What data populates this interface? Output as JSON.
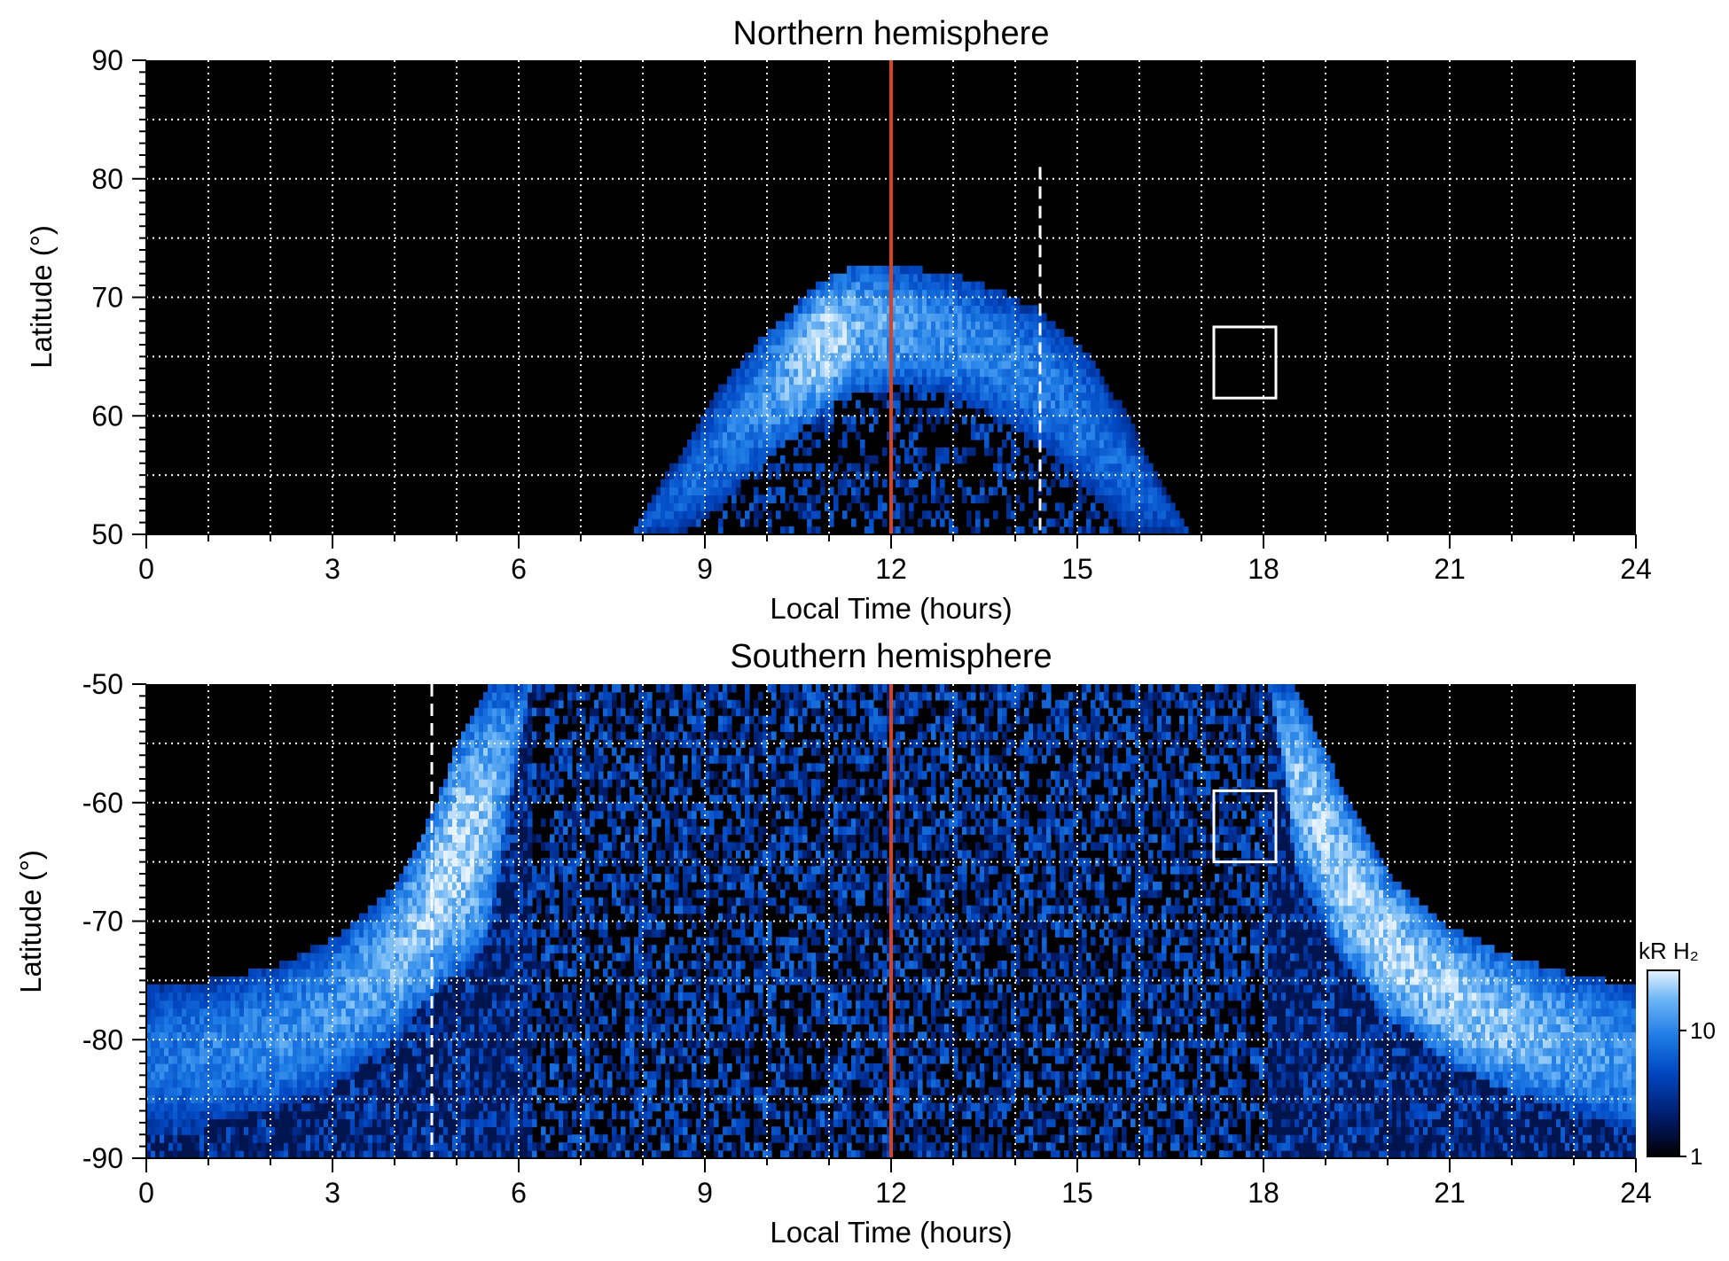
{
  "chart_data": [
    {
      "type": "heatmap",
      "title": "Northern hemisphere",
      "xlabel": "Local Time (hours)",
      "ylabel": "Latitude (°)",
      "xlim": [
        0,
        24
      ],
      "ylim": [
        50,
        90
      ],
      "x_ticks": [
        "0",
        "3",
        "6",
        "9",
        "12",
        "15",
        "18",
        "21",
        "24"
      ],
      "y_ticks": [
        "50",
        "60",
        "70",
        "80",
        "90"
      ],
      "grid": true,
      "noon_line_lt": 12,
      "dashed_line": {
        "lt": 14.4,
        "lat_range": [
          50,
          81
        ]
      },
      "box": {
        "lt": [
          17.2,
          18.2
        ],
        "lat": [
          61.5,
          67.5
        ]
      },
      "auroral_oval": [
        {
          "lt": 7.8,
          "equator": 50.0,
          "pole": 50.0,
          "peak": 0.45
        },
        {
          "lt": 8.5,
          "equator": 50.0,
          "pole": 56.0,
          "peak": 0.55
        },
        {
          "lt": 9.2,
          "equator": 52.0,
          "pole": 62.0,
          "peak": 0.6
        },
        {
          "lt": 9.8,
          "equator": 55.5,
          "pole": 66.0,
          "peak": 0.7
        },
        {
          "lt": 10.4,
          "equator": 58.0,
          "pole": 69.0,
          "peak": 0.85
        },
        {
          "lt": 10.9,
          "equator": 60.5,
          "pole": 71.5,
          "peak": 1.0
        },
        {
          "lt": 11.5,
          "equator": 62.0,
          "pole": 72.8,
          "peak": 0.85
        },
        {
          "lt": 12.3,
          "equator": 62.5,
          "pole": 72.5,
          "peak": 0.75
        },
        {
          "lt": 13.0,
          "equator": 61.5,
          "pole": 72.0,
          "peak": 0.7
        },
        {
          "lt": 13.8,
          "equator": 59.5,
          "pole": 70.5,
          "peak": 0.65
        },
        {
          "lt": 14.5,
          "equator": 57.0,
          "pole": 68.5,
          "peak": 0.65
        },
        {
          "lt": 15.2,
          "equator": 53.5,
          "pole": 65.0,
          "peak": 0.6
        },
        {
          "lt": 15.8,
          "equator": 50.0,
          "pole": 60.0,
          "peak": 0.55
        },
        {
          "lt": 16.3,
          "equator": 50.0,
          "pole": 55.0,
          "peak": 0.5
        },
        {
          "lt": 16.8,
          "equator": 50.0,
          "pole": 50.0,
          "peak": 0.4
        }
      ]
    },
    {
      "type": "heatmap",
      "title": "Southern hemisphere",
      "xlabel": "Local Time (hours)",
      "ylabel": "Latitude (°)",
      "xlim": [
        0,
        24
      ],
      "ylim": [
        -90,
        -50
      ],
      "x_ticks": [
        "0",
        "3",
        "6",
        "9",
        "12",
        "15",
        "18",
        "21",
        "24"
      ],
      "y_ticks": [
        "-90",
        "-80",
        "-70",
        "-60",
        "-50"
      ],
      "grid": true,
      "noon_line_lt": 12,
      "dashed_line": {
        "lt": 4.6,
        "lat_range": [
          -90,
          -50
        ]
      },
      "box": {
        "lt": [
          17.2,
          18.2
        ],
        "lat": [
          -65,
          -59
        ]
      },
      "auroral_oval": [
        {
          "lt": 0.0,
          "equator": -75.5,
          "pole": -88.0,
          "peak": 0.6
        },
        {
          "lt": 1.0,
          "equator": -75.0,
          "pole": -87.0,
          "peak": 0.65
        },
        {
          "lt": 2.0,
          "equator": -74.0,
          "pole": -86.0,
          "peak": 0.7
        },
        {
          "lt": 3.0,
          "equator": -71.5,
          "pole": -84.0,
          "peak": 0.75
        },
        {
          "lt": 4.0,
          "equator": -67.0,
          "pole": -80.0,
          "peak": 0.85
        },
        {
          "lt": 4.6,
          "equator": -61.0,
          "pole": -76.0,
          "peak": 0.95
        },
        {
          "lt": 5.0,
          "equator": -55.0,
          "pole": -74.5,
          "peak": 1.0
        },
        {
          "lt": 5.5,
          "equator": -50.0,
          "pole": -72.0,
          "peak": 0.9
        },
        {
          "lt": 6.2,
          "equator": -50.0,
          "pole": -50.0,
          "peak": 0.6
        },
        {
          "lt": 18.1,
          "equator": -50.0,
          "pole": -50.0,
          "peak": 0.6
        },
        {
          "lt": 18.5,
          "equator": -50.0,
          "pole": -65.0,
          "peak": 0.9
        },
        {
          "lt": 19.2,
          "equator": -58.0,
          "pole": -73.0,
          "peak": 0.95
        },
        {
          "lt": 20.0,
          "equator": -66.0,
          "pole": -78.0,
          "peak": 1.0
        },
        {
          "lt": 21.0,
          "equator": -70.5,
          "pole": -82.0,
          "peak": 0.95
        },
        {
          "lt": 22.0,
          "equator": -73.0,
          "pole": -84.5,
          "peak": 0.9
        },
        {
          "lt": 23.0,
          "equator": -74.5,
          "pole": -86.0,
          "peak": 0.8
        },
        {
          "lt": 24.0,
          "equator": -75.5,
          "pole": -88.0,
          "peak": 0.7
        }
      ]
    }
  ],
  "colorbar": {
    "label": "kR H₂",
    "ticks": [
      "1",
      "10"
    ],
    "scale": "log",
    "range": [
      1,
      30
    ],
    "colors": [
      "#000000",
      "#001a66",
      "#0047c2",
      "#1f7de6",
      "#6fb7f5",
      "#e6f3ff"
    ]
  },
  "colors": {
    "noon_line": "#d64323",
    "grid": "#ffffff",
    "background": "#000000"
  }
}
